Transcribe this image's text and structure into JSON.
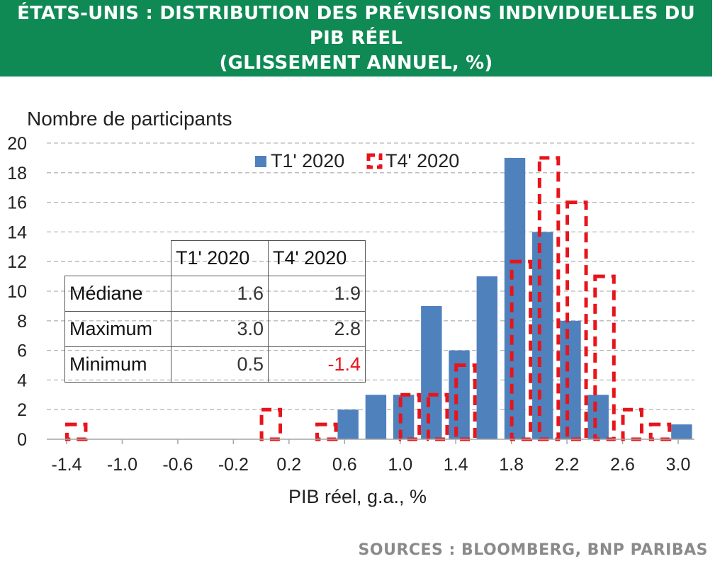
{
  "header": {
    "title_line1": "ÉTATS-UNIS : DISTRIBUTION DES PRÉVISIONS INDIVIDUELLES DU PIB RÉEL",
    "title_line2": "(GLISSEMENT ANNUEL, %)"
  },
  "source": "SOURCES : BLOOMBERG, BNP PARIBAS",
  "colors": {
    "header_bg": "#0f8a55",
    "series1": "#4f81bd",
    "series2": "#e8141b",
    "negative_value": "#e8141b"
  },
  "chart_data": {
    "type": "bar",
    "title": "",
    "ylabel": "Nombre de participants",
    "xlabel": "PIB réel, g.a., %",
    "ylim": [
      0,
      20
    ],
    "yticks": [
      "0",
      "2",
      "4",
      "6",
      "8",
      "10",
      "12",
      "14",
      "16",
      "18",
      "20"
    ],
    "xlim": [
      -1.4,
      3.0
    ],
    "xticks": [
      "-1.4",
      "-1.0",
      "-0.6",
      "-0.2",
      "0.2",
      "0.6",
      "1.0",
      "1.4",
      "1.8",
      "2.2",
      "2.6",
      "3.0"
    ],
    "grid": "horizontal dashed",
    "legend_position": "top-right",
    "series": [
      {
        "name": "T1' 2020",
        "style": "solid-blue",
        "points": [
          {
            "x": 0.6,
            "y": 2
          },
          {
            "x": 0.8,
            "y": 3
          },
          {
            "x": 1.0,
            "y": 3
          },
          {
            "x": 1.2,
            "y": 9
          },
          {
            "x": 1.4,
            "y": 6
          },
          {
            "x": 1.6,
            "y": 11
          },
          {
            "x": 1.8,
            "y": 19
          },
          {
            "x": 2.0,
            "y": 14
          },
          {
            "x": 2.2,
            "y": 8
          },
          {
            "x": 2.4,
            "y": 3
          },
          {
            "x": 3.0,
            "y": 1
          }
        ]
      },
      {
        "name": "T4' 2020",
        "style": "dashed-red-outline",
        "points": [
          {
            "x": -1.4,
            "y": 1
          },
          {
            "x": 0.0,
            "y": 2
          },
          {
            "x": 0.4,
            "y": 1
          },
          {
            "x": 1.0,
            "y": 3
          },
          {
            "x": 1.2,
            "y": 3
          },
          {
            "x": 1.4,
            "y": 5
          },
          {
            "x": 1.8,
            "y": 12
          },
          {
            "x": 2.0,
            "y": 19
          },
          {
            "x": 2.2,
            "y": 16
          },
          {
            "x": 2.4,
            "y": 11
          },
          {
            "x": 2.6,
            "y": 2
          },
          {
            "x": 2.8,
            "y": 1
          }
        ]
      }
    ]
  },
  "stats_table": {
    "columns": [
      "T1' 2020",
      "T4' 2020"
    ],
    "rows": [
      {
        "label": "Médiane",
        "values": [
          "1.6",
          "1.9"
        ]
      },
      {
        "label": "Maximum",
        "values": [
          "3.0",
          "2.8"
        ]
      },
      {
        "label": "Minimum",
        "values": [
          "0.5",
          "-1.4"
        ]
      }
    ]
  }
}
